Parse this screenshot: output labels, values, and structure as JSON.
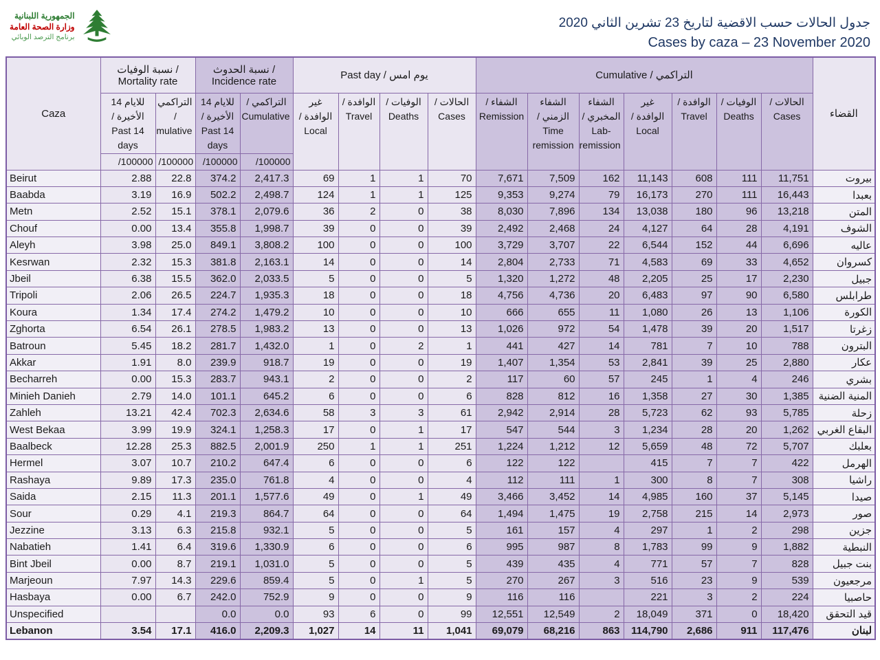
{
  "header": {
    "logo": {
      "line1": "الجمهورية اللبنانية",
      "line2": "وزارة الصحة العامة",
      "line3": "برنامج الترصد الوبائي"
    },
    "title_ar": "جدول الحالات حسب الاقضية لتاريخ  23 تشرين الثاني 2020",
    "title_en": "Cases by caza – 23 November 2020"
  },
  "table": {
    "corner_left": "Caza",
    "corner_right": "القضاء",
    "groups": [
      {
        "label": "نسبة الوفيات / Mortality rate",
        "shade": "light",
        "span": 2,
        "dir": "ltr"
      },
      {
        "label": "نسبة الحدوث / Incidence rate",
        "shade": "dark",
        "span": 2,
        "dir": "ltr"
      },
      {
        "label": "Past day / يوم امس",
        "shade": "light",
        "span": 4,
        "dir": "ltr"
      },
      {
        "label": "Cumulative / التراكمي",
        "shade": "dark",
        "span": 7,
        "dir": "ltr"
      }
    ],
    "rate_subheaders": [
      {
        "label": "للايام 14 الأخيرة / Past 14 days",
        "unit": "/100000",
        "shade": "light"
      },
      {
        "label": "التراكمي / Cumulative",
        "unit": "/100000",
        "shade": "light"
      },
      {
        "label": "للايام 14 الأخيرة / Past 14 days",
        "unit": "/100000",
        "shade": "dark"
      },
      {
        "label": "التراكمي / Cumulative",
        "unit": "/100000",
        "shade": "dark"
      }
    ],
    "pastday_subheaders": [
      {
        "label": "غير الوافدة / Local",
        "shade": "light"
      },
      {
        "label": "الوافدة / Travel",
        "shade": "light"
      },
      {
        "label": "الوفيات / Deaths",
        "shade": "light"
      },
      {
        "label": "الحالات / Cases",
        "shade": "light"
      }
    ],
    "cumulative_subheaders": [
      {
        "label": "الشفاء / Remission",
        "shade": "dark"
      },
      {
        "label": "الشفاء الزمني / Time remission",
        "shade": "dark"
      },
      {
        "label": "الشفاء المخبري / Lab-remission",
        "shade": "dark"
      },
      {
        "label": "غير الوافدة / Local",
        "shade": "dark"
      },
      {
        "label": "الوافدة / Travel",
        "shade": "dark"
      },
      {
        "label": "الوفيات / Deaths",
        "shade": "dark"
      },
      {
        "label": "الحالات / Cases",
        "shade": "dark"
      }
    ],
    "column_shades": [
      "light",
      "light",
      "dark",
      "dark",
      "light",
      "light",
      "light",
      "light",
      "dark",
      "dark",
      "dark",
      "dark",
      "dark",
      "dark",
      "dark"
    ],
    "rows": [
      {
        "caza": "Beirut",
        "caza_ar": "بيروت",
        "values": [
          "2.88",
          "22.8",
          "374.2",
          "2,417.3",
          "69",
          "1",
          "1",
          "70",
          "7,671",
          "7,509",
          "162",
          "11,143",
          "608",
          "111",
          "11,751"
        ]
      },
      {
        "caza": "Baabda",
        "caza_ar": "بعبدا",
        "values": [
          "3.19",
          "16.9",
          "502.2",
          "2,498.7",
          "124",
          "1",
          "1",
          "125",
          "9,353",
          "9,274",
          "79",
          "16,173",
          "270",
          "111",
          "16,443"
        ]
      },
      {
        "caza": "Metn",
        "caza_ar": "المتن",
        "values": [
          "2.52",
          "15.1",
          "378.1",
          "2,079.6",
          "36",
          "2",
          "0",
          "38",
          "8,030",
          "7,896",
          "134",
          "13,038",
          "180",
          "96",
          "13,218"
        ]
      },
      {
        "caza": "Chouf",
        "caza_ar": "الشوف",
        "values": [
          "0.00",
          "13.4",
          "355.8",
          "1,998.7",
          "39",
          "0",
          "0",
          "39",
          "2,492",
          "2,468",
          "24",
          "4,127",
          "64",
          "28",
          "4,191"
        ]
      },
      {
        "caza": "Aleyh",
        "caza_ar": "عاليه",
        "values": [
          "3.98",
          "25.0",
          "849.1",
          "3,808.2",
          "100",
          "0",
          "0",
          "100",
          "3,729",
          "3,707",
          "22",
          "6,544",
          "152",
          "44",
          "6,696"
        ]
      },
      {
        "caza": "Kesrwan",
        "caza_ar": "كسروان",
        "values": [
          "2.32",
          "15.3",
          "381.8",
          "2,163.1",
          "14",
          "0",
          "0",
          "14",
          "2,804",
          "2,733",
          "71",
          "4,583",
          "69",
          "33",
          "4,652"
        ]
      },
      {
        "caza": "Jbeil",
        "caza_ar": "جبيل",
        "values": [
          "6.38",
          "15.5",
          "362.0",
          "2,033.5",
          "5",
          "0",
          "0",
          "5",
          "1,320",
          "1,272",
          "48",
          "2,205",
          "25",
          "17",
          "2,230"
        ]
      },
      {
        "caza": "Tripoli",
        "caza_ar": "طرابلس",
        "values": [
          "2.06",
          "26.5",
          "224.7",
          "1,935.3",
          "18",
          "0",
          "0",
          "18",
          "4,756",
          "4,736",
          "20",
          "6,483",
          "97",
          "90",
          "6,580"
        ]
      },
      {
        "caza": "Koura",
        "caza_ar": "الكورة",
        "values": [
          "1.34",
          "17.4",
          "274.2",
          "1,479.2",
          "10",
          "0",
          "0",
          "10",
          "666",
          "655",
          "11",
          "1,080",
          "26",
          "13",
          "1,106"
        ]
      },
      {
        "caza": "Zghorta",
        "caza_ar": "زغرتا",
        "values": [
          "6.54",
          "26.1",
          "278.5",
          "1,983.2",
          "13",
          "0",
          "0",
          "13",
          "1,026",
          "972",
          "54",
          "1,478",
          "39",
          "20",
          "1,517"
        ]
      },
      {
        "caza": "Batroun",
        "caza_ar": "البترون",
        "values": [
          "5.45",
          "18.2",
          "281.7",
          "1,432.0",
          "1",
          "0",
          "2",
          "1",
          "441",
          "427",
          "14",
          "781",
          "7",
          "10",
          "788"
        ]
      },
      {
        "caza": "Akkar",
        "caza_ar": "عكار",
        "values": [
          "1.91",
          "8.0",
          "239.9",
          "918.7",
          "19",
          "0",
          "0",
          "19",
          "1,407",
          "1,354",
          "53",
          "2,841",
          "39",
          "25",
          "2,880"
        ]
      },
      {
        "caza": "Becharreh",
        "caza_ar": "بشري",
        "values": [
          "0.00",
          "15.3",
          "283.7",
          "943.1",
          "2",
          "0",
          "0",
          "2",
          "117",
          "60",
          "57",
          "245",
          "1",
          "4",
          "246"
        ]
      },
      {
        "caza": "Minieh Danieh",
        "caza_ar": "المنية الضنية",
        "values": [
          "2.79",
          "14.0",
          "101.1",
          "645.2",
          "6",
          "0",
          "0",
          "6",
          "828",
          "812",
          "16",
          "1,358",
          "27",
          "30",
          "1,385"
        ]
      },
      {
        "caza": "Zahleh",
        "caza_ar": "زحلة",
        "values": [
          "13.21",
          "42.4",
          "702.3",
          "2,634.6",
          "58",
          "3",
          "3",
          "61",
          "2,942",
          "2,914",
          "28",
          "5,723",
          "62",
          "93",
          "5,785"
        ]
      },
      {
        "caza": "West Bekaa",
        "caza_ar": "البقاع الغربي",
        "values": [
          "3.99",
          "19.9",
          "324.1",
          "1,258.3",
          "17",
          "0",
          "1",
          "17",
          "547",
          "544",
          "3",
          "1,234",
          "28",
          "20",
          "1,262"
        ]
      },
      {
        "caza": "Baalbeck",
        "caza_ar": "بعلبك",
        "values": [
          "12.28",
          "25.3",
          "882.5",
          "2,001.9",
          "250",
          "1",
          "1",
          "251",
          "1,224",
          "1,212",
          "12",
          "5,659",
          "48",
          "72",
          "5,707"
        ]
      },
      {
        "caza": "Hermel",
        "caza_ar": "الهرمل",
        "values": [
          "3.07",
          "10.7",
          "210.2",
          "647.4",
          "6",
          "0",
          "0",
          "6",
          "122",
          "122",
          "",
          "415",
          "7",
          "7",
          "422"
        ]
      },
      {
        "caza": "Rashaya",
        "caza_ar": "راشيا",
        "values": [
          "9.89",
          "17.3",
          "235.0",
          "761.8",
          "4",
          "0",
          "0",
          "4",
          "112",
          "111",
          "1",
          "300",
          "8",
          "7",
          "308"
        ]
      },
      {
        "caza": "Saida",
        "caza_ar": "صيدا",
        "values": [
          "2.15",
          "11.3",
          "201.1",
          "1,577.6",
          "49",
          "0",
          "1",
          "49",
          "3,466",
          "3,452",
          "14",
          "4,985",
          "160",
          "37",
          "5,145"
        ]
      },
      {
        "caza": "Sour",
        "caza_ar": "صور",
        "values": [
          "0.29",
          "4.1",
          "219.3",
          "864.7",
          "64",
          "0",
          "0",
          "64",
          "1,494",
          "1,475",
          "19",
          "2,758",
          "215",
          "14",
          "2,973"
        ]
      },
      {
        "caza": "Jezzine",
        "caza_ar": "جزين",
        "values": [
          "3.13",
          "6.3",
          "215.8",
          "932.1",
          "5",
          "0",
          "0",
          "5",
          "161",
          "157",
          "4",
          "297",
          "1",
          "2",
          "298"
        ]
      },
      {
        "caza": "Nabatieh",
        "caza_ar": "النبطية",
        "values": [
          "1.41",
          "6.4",
          "319.6",
          "1,330.9",
          "6",
          "0",
          "0",
          "6",
          "995",
          "987",
          "8",
          "1,783",
          "99",
          "9",
          "1,882"
        ]
      },
      {
        "caza": "Bint Jbeil",
        "caza_ar": "بنت جبيل",
        "values": [
          "0.00",
          "8.7",
          "219.1",
          "1,031.0",
          "5",
          "0",
          "0",
          "5",
          "439",
          "435",
          "4",
          "771",
          "57",
          "7",
          "828"
        ]
      },
      {
        "caza": "Marjeoun",
        "caza_ar": "مرجعيون",
        "values": [
          "7.97",
          "14.3",
          "229.6",
          "859.4",
          "5",
          "0",
          "1",
          "5",
          "270",
          "267",
          "3",
          "516",
          "23",
          "9",
          "539"
        ]
      },
      {
        "caza": "Hasbaya",
        "caza_ar": "حاصبيا",
        "values": [
          "0.00",
          "6.7",
          "242.0",
          "752.9",
          "9",
          "0",
          "0",
          "9",
          "116",
          "116",
          "",
          "221",
          "3",
          "2",
          "224"
        ]
      },
      {
        "caza": "Unspecified",
        "caza_ar": "قيد التحقق",
        "values": [
          "",
          "",
          "0.0",
          "0.0",
          "93",
          "6",
          "0",
          "99",
          "12,551",
          "12,549",
          "2",
          "18,049",
          "371",
          "0",
          "18,420"
        ]
      },
      {
        "caza": "Lebanon",
        "caza_ar": "لبنان",
        "is_total": true,
        "values": [
          "3.54",
          "17.1",
          "416.0",
          "2,209.3",
          "1,027",
          "14",
          "11",
          "1,041",
          "69,079",
          "68,216",
          "863",
          "114,790",
          "2,686",
          "911",
          "117,476"
        ]
      }
    ]
  },
  "colors": {
    "border": "#8668a7",
    "light_bg": "#eae6f1",
    "dark_bg": "#ccc2de",
    "name_bg": "#f1eff6",
    "title": "#1f3864",
    "logo_green": "#2e7d33",
    "logo_red": "#c00000"
  }
}
